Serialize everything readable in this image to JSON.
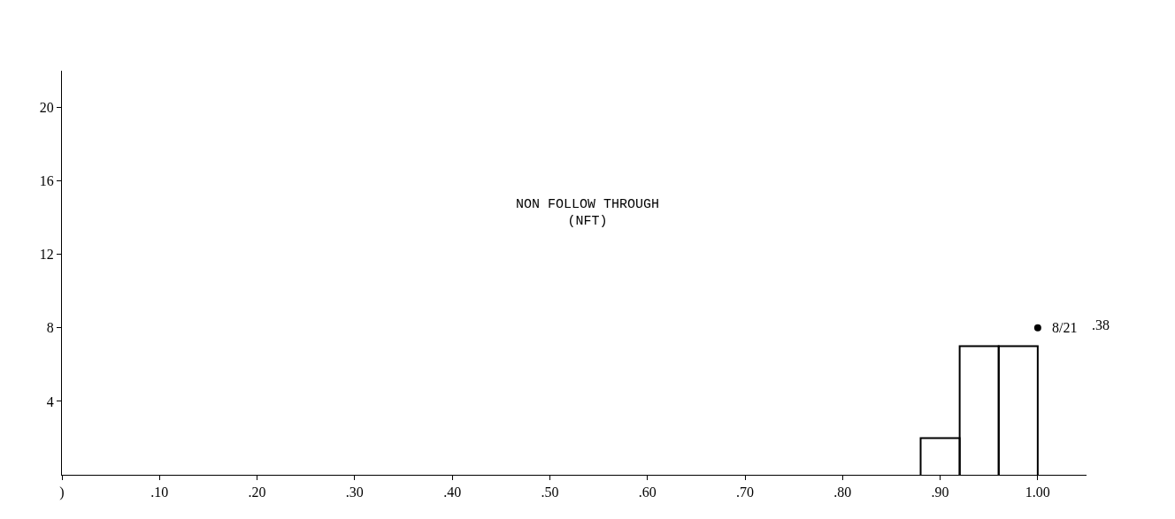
{
  "chart_data": {
    "type": "histogram",
    "title": "NON FOLLOW THROUGH\n(NFT)",
    "bins": [
      0.88,
      0.92,
      0.96,
      1.0
    ],
    "values": [
      2,
      7,
      7
    ],
    "color": "#000000",
    "series": [
      {
        "type": "scatter",
        "x": [
          1.0
        ],
        "values": [
          8
        ],
        "color": "#000000"
      }
    ],
    "annotations": [
      {
        "text": "8/21",
        "x": 1.0,
        "y": 8
      },
      ".38"
    ],
    "xlim": [
      0,
      1.05
    ],
    "ylim": [
      0,
      22
    ],
    "xticks": [
      {
        "value": 0,
        "label": ")"
      },
      {
        "value": 0.1,
        "label": ".10"
      },
      {
        "value": 0.2,
        "label": ".20"
      },
      {
        "value": 0.3,
        "label": ".30"
      },
      {
        "value": 0.4,
        "label": ".40"
      },
      {
        "value": 0.5,
        "label": ".50"
      },
      {
        "value": 0.6,
        "label": ".60"
      },
      {
        "value": 0.7,
        "label": ".70"
      },
      {
        "value": 0.8,
        "label": ".80"
      },
      {
        "value": 0.9,
        "label": ".90"
      },
      {
        "value": 1.0,
        "label": "1.00"
      }
    ],
    "yticks": [
      4,
      8,
      12,
      16,
      20
    ]
  }
}
